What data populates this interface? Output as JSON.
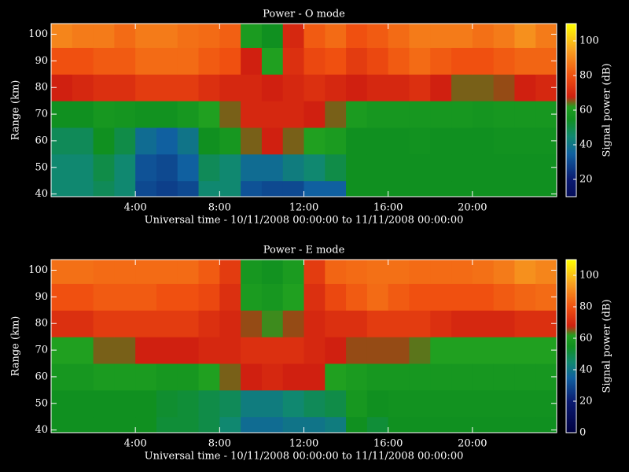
{
  "chart_data": [
    {
      "type": "heatmap",
      "title": "Power - O mode",
      "xlabel": "Universal time - 10/11/2008 00:00:00 to 11/11/2008 00:00:00",
      "ylabel": "Range (km)",
      "colorbar_label": "Signal power (dB)",
      "xbins": [
        0,
        1,
        2,
        3,
        4,
        5,
        6,
        7,
        8,
        9,
        10,
        11,
        12,
        13,
        14,
        15,
        16,
        17,
        18,
        19,
        20,
        21,
        22,
        23,
        24
      ],
      "ybins": [
        39,
        45,
        55,
        65,
        75,
        85,
        95,
        104
      ],
      "z": [
        [
          45,
          45,
          48,
          45,
          30,
          28,
          30,
          45,
          45,
          32,
          30,
          30,
          35,
          35,
          55,
          55,
          55,
          55,
          55,
          55,
          55,
          55,
          55,
          55
        ],
        [
          45,
          45,
          50,
          45,
          32,
          30,
          35,
          48,
          45,
          38,
          38,
          42,
          45,
          50,
          55,
          55,
          55,
          55,
          55,
          55,
          55,
          55,
          55,
          55
        ],
        [
          48,
          48,
          55,
          50,
          38,
          35,
          40,
          55,
          58,
          65,
          68,
          65,
          62,
          60,
          55,
          55,
          55,
          56,
          55,
          55,
          55,
          56,
          56,
          56
        ],
        [
          55,
          55,
          58,
          57,
          56,
          56,
          58,
          62,
          65,
          70,
          70,
          70,
          68,
          65,
          60,
          58,
          58,
          58,
          58,
          58,
          57,
          58,
          58,
          58
        ],
        [
          68,
          70,
          72,
          72,
          75,
          75,
          75,
          72,
          70,
          70,
          68,
          70,
          72,
          70,
          68,
          70,
          70,
          72,
          68,
          65,
          65,
          66,
          68,
          70
        ],
        [
          80,
          80,
          82,
          82,
          85,
          85,
          85,
          82,
          80,
          68,
          62,
          72,
          78,
          80,
          75,
          78,
          82,
          85,
          82,
          80,
          80,
          82,
          84,
          84
        ],
        [
          90,
          88,
          88,
          85,
          88,
          88,
          86,
          85,
          83,
          60,
          55,
          70,
          82,
          85,
          80,
          82,
          85,
          88,
          88,
          88,
          86,
          88,
          92,
          88
        ]
      ],
      "xlim": [
        0,
        24
      ],
      "ylim": [
        39,
        104
      ],
      "xticks": [
        {
          "value": 4,
          "label": "4:00"
        },
        {
          "value": 8,
          "label": "8:00"
        },
        {
          "value": 12,
          "label": "12:00"
        },
        {
          "value": 16,
          "label": "16:00"
        },
        {
          "value": 20,
          "label": "20:00"
        }
      ],
      "yticks": [
        40,
        50,
        60,
        70,
        80,
        90,
        100
      ],
      "clim": [
        10,
        110
      ],
      "cticks": [
        20,
        40,
        60,
        80,
        100
      ],
      "colorscale": [
        [
          0,
          "#000040"
        ],
        [
          20,
          "#0a1a70"
        ],
        [
          35,
          "#1060a0"
        ],
        [
          45,
          "#108870"
        ],
        [
          55,
          "#109020"
        ],
        [
          62,
          "#20a020"
        ],
        [
          68,
          "#d02010"
        ],
        [
          80,
          "#f05010"
        ],
        [
          95,
          "#f8a020"
        ],
        [
          110,
          "#ffff00"
        ]
      ]
    },
    {
      "type": "heatmap",
      "title": "Power - E mode",
      "xlabel": "Universal time - 10/11/2008 00:00:00 to 11/11/2008 00:00:00",
      "ylabel": "Range (km)",
      "colorbar_label": "Signal power (dB)",
      "xbins": [
        0,
        1,
        2,
        3,
        4,
        5,
        6,
        7,
        8,
        9,
        10,
        11,
        12,
        13,
        14,
        15,
        16,
        17,
        18,
        19,
        20,
        21,
        22,
        23,
        24
      ],
      "ybins": [
        39,
        45,
        55,
        65,
        75,
        85,
        95,
        104
      ],
      "z": [
        [
          55,
          55,
          55,
          55,
          55,
          52,
          52,
          50,
          45,
          38,
          38,
          40,
          40,
          42,
          55,
          52,
          55,
          55,
          55,
          55,
          55,
          55,
          55,
          55
        ],
        [
          55,
          55,
          55,
          55,
          55,
          53,
          52,
          50,
          48,
          42,
          42,
          45,
          48,
          50,
          58,
          55,
          56,
          56,
          56,
          56,
          56,
          56,
          56,
          56
        ],
        [
          58,
          58,
          60,
          60,
          60,
          58,
          58,
          62,
          65,
          68,
          70,
          68,
          68,
          62,
          60,
          58,
          58,
          58,
          58,
          58,
          58,
          58,
          58,
          58
        ],
        [
          62,
          62,
          65,
          65,
          68,
          68,
          68,
          70,
          70,
          72,
          72,
          72,
          70,
          68,
          66,
          66,
          66,
          64,
          62,
          62,
          62,
          62,
          62,
          62
        ],
        [
          72,
          72,
          75,
          75,
          75,
          75,
          75,
          72,
          70,
          66,
          63,
          66,
          70,
          72,
          72,
          75,
          75,
          75,
          72,
          70,
          70,
          70,
          72,
          72
        ],
        [
          80,
          80,
          82,
          82,
          82,
          80,
          80,
          78,
          72,
          60,
          58,
          62,
          72,
          78,
          82,
          85,
          82,
          80,
          80,
          80,
          80,
          82,
          84,
          85
        ],
        [
          86,
          86,
          85,
          85,
          85,
          85,
          85,
          82,
          75,
          58,
          56,
          60,
          75,
          84,
          85,
          86,
          86,
          85,
          85,
          85,
          86,
          88,
          92,
          90
        ]
      ],
      "xlim": [
        0,
        24
      ],
      "ylim": [
        39,
        104
      ],
      "xticks": [
        {
          "value": 4,
          "label": "4:00"
        },
        {
          "value": 8,
          "label": "8:00"
        },
        {
          "value": 12,
          "label": "12:00"
        },
        {
          "value": 16,
          "label": "16:00"
        },
        {
          "value": 20,
          "label": "20:00"
        }
      ],
      "yticks": [
        40,
        50,
        60,
        70,
        80,
        90,
        100
      ],
      "clim": [
        0,
        110
      ],
      "cticks": [
        0,
        20,
        40,
        60,
        80,
        100
      ],
      "colorscale": [
        [
          0,
          "#000040"
        ],
        [
          20,
          "#0a1a70"
        ],
        [
          35,
          "#1060a0"
        ],
        [
          45,
          "#108870"
        ],
        [
          55,
          "#109020"
        ],
        [
          62,
          "#20a020"
        ],
        [
          68,
          "#d02010"
        ],
        [
          80,
          "#f05010"
        ],
        [
          95,
          "#f8a020"
        ],
        [
          110,
          "#ffff00"
        ]
      ]
    }
  ]
}
